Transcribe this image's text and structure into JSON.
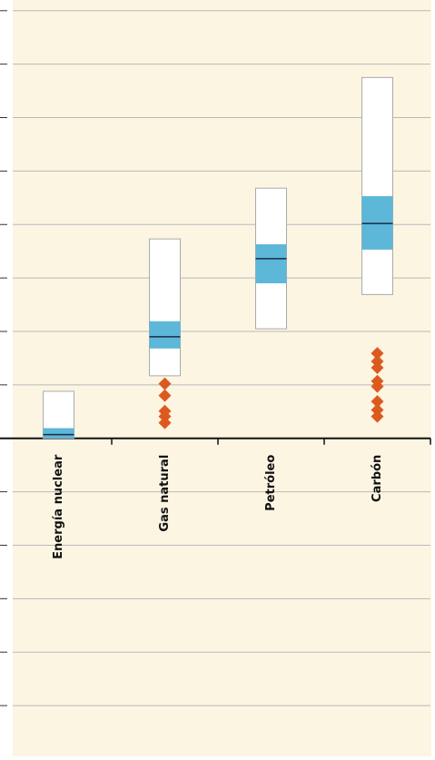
{
  "chart_data": {
    "type": "box",
    "categories": [
      "Energía nuclear",
      "Gas natural",
      "Petróleo",
      "Carbón"
    ],
    "min": [
      0,
      1.17,
      2.05,
      2.69
    ],
    "q1": [
      0,
      1.68,
      2.9,
      3.53
    ],
    "median": [
      0.07,
      1.9,
      3.36,
      4.02
    ],
    "q3": [
      0.19,
      2.19,
      3.63,
      4.53
    ],
    "max": [
      0.88,
      3.73,
      4.68,
      6.75
    ],
    "outliers": [
      [],
      [
        1.02,
        0.8,
        0.51,
        0.41,
        0.29
      ],
      [],
      [
        1.59,
        1.44,
        1.32,
        1.07,
        0.97,
        0.69,
        0.53,
        0.41
      ]
    ],
    "colors": {
      "box": "#ffffff",
      "iqr": "#5db7d8",
      "median": "#1b2b45",
      "outlier": "#dd5a1f"
    },
    "ylim": [
      -5.95,
      8.2
    ],
    "yticks": [
      -5,
      -4,
      -3,
      -2,
      -1,
      0,
      1,
      2,
      3,
      4,
      5,
      6,
      7,
      8
    ],
    "grid": true
  }
}
